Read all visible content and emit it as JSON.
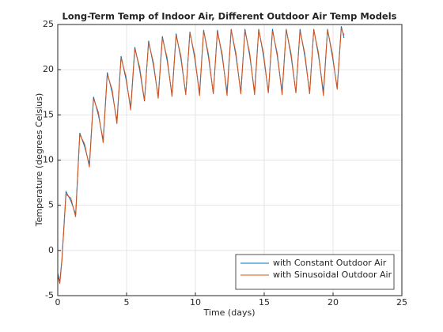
{
  "chart_data": {
    "type": "line",
    "title": "Long-Term Temp of Indoor Air, Different Outdoor Air Temp Models",
    "x_label": "Time (days)",
    "y_label": "Temperature (degrees Celsius)",
    "x": [
      0,
      0.15,
      0.3,
      0.6,
      0.95,
      1.3,
      1.6,
      1.95,
      2.3,
      2.6,
      2.95,
      3.3,
      3.6,
      3.95,
      4.3,
      4.6,
      4.95,
      5.3,
      5.6,
      5.95,
      6.3,
      6.6,
      6.95,
      7.3,
      7.6,
      7.95,
      8.3,
      8.6,
      8.95,
      9.3,
      9.6,
      9.95,
      10.3,
      10.6,
      10.95,
      11.3,
      11.6,
      11.95,
      12.3,
      12.6,
      12.95,
      13.3,
      13.6,
      13.95,
      14.3,
      14.6,
      14.95,
      15.3,
      15.6,
      15.95,
      16.3,
      16.6,
      16.95,
      17.3,
      17.6,
      17.95,
      18.3,
      18.6,
      18.95,
      19.3,
      19.6,
      19.95,
      20.3,
      20.6,
      20.8
    ],
    "series": [
      {
        "name": "with Constant Outdoor Air",
        "color": "#0072bd",
        "values": [
          -2.5,
          -3.5,
          -1,
          6.5,
          5.5,
          4,
          13,
          11.5,
          9.5,
          17,
          15,
          12.2,
          19.7,
          17.5,
          14.3,
          21.5,
          19,
          15.8,
          22.5,
          20,
          16.5,
          23.2,
          20.5,
          17,
          23.7,
          21,
          17.2,
          24,
          21.2,
          17.3,
          24.2,
          21.3,
          17.4,
          24.4,
          21.4,
          17.4,
          24.4,
          21.4,
          17.5,
          24.5,
          21.5,
          17.5,
          24.5,
          21.5,
          17.5,
          24.5,
          21.5,
          17.5,
          24.5,
          21.5,
          17.5,
          24.5,
          21.5,
          17.5,
          24.5,
          21.5,
          17.5,
          24.5,
          21.5,
          17.5,
          24.5,
          21.5,
          18,
          24.8,
          23.5
        ]
      },
      {
        "name": "with Sinusoidal Outdoor Air",
        "color": "#d95319",
        "values": [
          -2.8,
          -3.7,
          -1.2,
          6.2,
          5.8,
          3.7,
          12.8,
          11.8,
          9.2,
          16.8,
          15.3,
          11.9,
          19.5,
          17.8,
          14,
          21.3,
          19.3,
          15.5,
          22.3,
          20.3,
          16.6,
          23,
          20.8,
          16.8,
          23.5,
          21.3,
          17,
          23.8,
          21.5,
          17.2,
          24.1,
          21.6,
          17.1,
          24.3,
          21.7,
          17.3,
          24.2,
          21.7,
          17.1,
          24.4,
          21.8,
          17.3,
          24.3,
          21.8,
          17.2,
          24.4,
          21.8,
          17.4,
          24.3,
          21.8,
          17.2,
          24.4,
          21.8,
          17.4,
          24.3,
          21.8,
          17.3,
          24.4,
          21.8,
          17.1,
          24.4,
          21.8,
          17.8,
          24.6,
          23.8
        ]
      }
    ],
    "xlim": [
      0,
      25
    ],
    "xticks": [
      0,
      5,
      10,
      15,
      20,
      25
    ],
    "ylim": [
      -5,
      25
    ],
    "yticks": [
      -5,
      0,
      5,
      10,
      15,
      20,
      25
    ],
    "grid": true,
    "legend": "southeast"
  }
}
